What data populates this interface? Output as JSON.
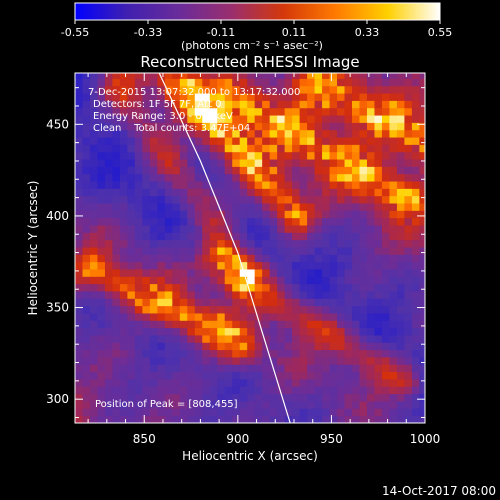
{
  "chart_data": {
    "type": "heatmap",
    "title": "Reconstructed RHESSI Image",
    "xlabel": "Heliocentric X (arcsec)",
    "ylabel": "Heliocentric Y (arcsec)",
    "xlim": [
      813,
      1000
    ],
    "ylim": [
      287,
      478
    ],
    "xticks": [
      850,
      900,
      950,
      1000
    ],
    "yticks": [
      300,
      350,
      400,
      450
    ],
    "colorbar": {
      "min": -0.55,
      "max": 0.55,
      "ticks": [
        "-0.55",
        "-0.33",
        "-0.11",
        "0.11",
        "0.33",
        "0.55"
      ],
      "unit_label": "(photons cm⁻² s⁻¹ asec⁻²)",
      "colors": [
        "#0000ff",
        "#4020b0",
        "#6a2c9a",
        "#9a2e6e",
        "#d4380a",
        "#ff7a00",
        "#ffd000",
        "#ffffff"
      ]
    },
    "annotations": [
      "7-Dec-2015 13:07:32.000 to 13:17:32.000",
      "Detectors: 1F 5F 7F, Att 0",
      "Energy Range: 3.0 - 6.0 keV",
      "Clean    Total counts: 3.47E+04",
      "Position of Peak = [808,455]"
    ],
    "peak_position": [
      808,
      455
    ],
    "limb_curve": {
      "x": [
        858,
        880,
        900,
        915,
        928
      ],
      "y": [
        478,
        430,
        380,
        330,
        287
      ]
    },
    "bright_ridges": [
      {
        "from": [
          835,
          470
        ],
        "to": [
          905,
          370
        ],
        "intensity": 0.35
      },
      {
        "from": [
          870,
          470
        ],
        "to": [
          930,
          400
        ],
        "intensity": 0.45
      },
      {
        "from": [
          820,
          370
        ],
        "to": [
          900,
          330
        ],
        "intensity": 0.4
      },
      {
        "from": [
          890,
          375
        ],
        "to": [
          990,
          310
        ],
        "intensity": 0.45
      },
      {
        "from": [
          900,
          465
        ],
        "to": [
          990,
          410
        ],
        "intensity": 0.3
      },
      {
        "from": [
          940,
          470
        ],
        "to": [
          1000,
          440
        ],
        "intensity": 0.3
      }
    ]
  },
  "timestamp": "14-Oct-2017 08:00"
}
